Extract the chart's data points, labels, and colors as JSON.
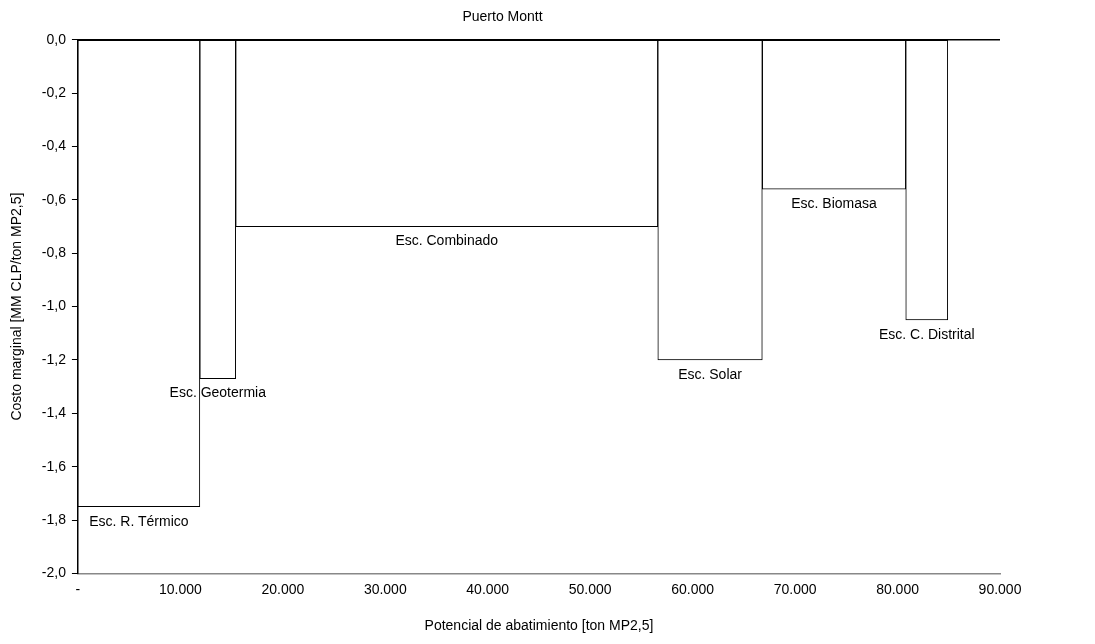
{
  "chart_data": {
    "type": "histogram",
    "title": "Puerto Montt",
    "xlabel": "Potencial de abatimiento [ton MP2,5]",
    "ylabel": "Costo marginal [MM CLP/ton MP2,5]",
    "bins": [
      0,
      11900,
      15400,
      56600,
      66800,
      80800,
      84900
    ],
    "values": [
      -1.75,
      -1.27,
      -0.7,
      -1.2,
      -0.56,
      -1.05
    ],
    "color": "#ffffff",
    "xlim": [
      0,
      90000
    ],
    "xticks": [
      {
        "value": 0,
        "label": "-"
      },
      {
        "value": 10000,
        "label": "10.000"
      },
      {
        "value": 20000,
        "label": "20.000"
      },
      {
        "value": 30000,
        "label": "30.000"
      },
      {
        "value": 40000,
        "label": "40.000"
      },
      {
        "value": 50000,
        "label": "50.000"
      },
      {
        "value": 60000,
        "label": "60.000"
      },
      {
        "value": 70000,
        "label": "70.000"
      },
      {
        "value": 80000,
        "label": "80.000"
      },
      {
        "value": 90000,
        "label": "90.000"
      }
    ],
    "ylim": [
      -2.0,
      0.0
    ],
    "yticks": [
      {
        "value": -2.0,
        "label": "-2,0"
      },
      {
        "value": -1.8,
        "label": "-1,8"
      },
      {
        "value": -1.6,
        "label": "-1,6"
      },
      {
        "value": -1.4,
        "label": "-1,4"
      },
      {
        "value": -1.2,
        "label": "-1,2"
      },
      {
        "value": -1.0,
        "label": "-1,0"
      },
      {
        "value": -0.8,
        "label": "-0,8"
      },
      {
        "value": -0.6,
        "label": "-0,6"
      },
      {
        "value": -0.4,
        "label": "-0,4"
      },
      {
        "value": -0.2,
        "label": "-0,2"
      },
      {
        "value": 0.0,
        "label": "0,0"
      }
    ],
    "annotations": [
      "Esc. R. Térmico",
      "Esc. Geotermia",
      "Esc. Combinado",
      "Esc. Solar",
      "Esc. Biomasa",
      "Esc. C. Distrital"
    ],
    "grid": false,
    "legend": false
  }
}
